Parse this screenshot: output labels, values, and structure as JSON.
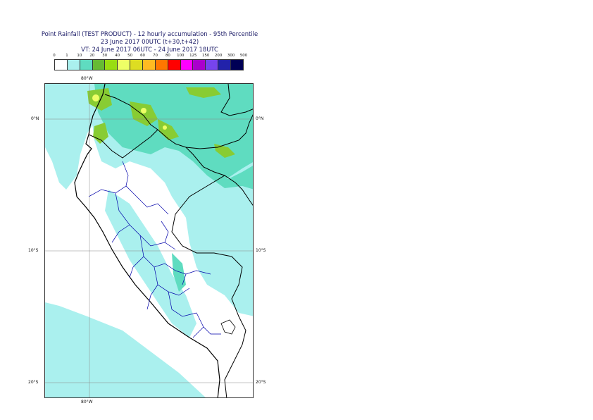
{
  "title": {
    "line1": "Point Rainfall (TEST PRODUCT) - 12 hourly accumulation - 95th Percentile",
    "line2": "23 June 2017 00UTC (t+30,t+42)",
    "line3": "VT: 24 June 2017 06UTC - 24 June 2017 18UTC"
  },
  "legend": {
    "ticks": [
      "0",
      "1",
      "10",
      "20",
      "30",
      "40",
      "50",
      "60",
      "70",
      "80",
      "100",
      "125",
      "150",
      "200",
      "300",
      "500"
    ],
    "colors": [
      "#ffffff",
      "#aaf0ee",
      "#5fdcc0",
      "#66bb33",
      "#99dd11",
      "#eeff66",
      "#dddd22",
      "#ffbb22",
      "#ff7700",
      "#ff0000",
      "#ff00ff",
      "#aa00cc",
      "#7744ee",
      "#2222aa",
      "#000055"
    ]
  },
  "map": {
    "lon_label_top": "80°W",
    "lon_label_bottom": "80°W",
    "lat_labels_left": [
      "0°N",
      "10°S",
      "20°S"
    ],
    "lat_labels_right": [
      "0°N",
      "10°S",
      "20°S"
    ],
    "colors": {
      "light": "#aaf0ee",
      "medium": "#5fdcc0",
      "green": "#88cc33",
      "yellow": "#eeff66",
      "coast": "#000000",
      "border": "#0000aa",
      "grid": "#888888"
    }
  }
}
